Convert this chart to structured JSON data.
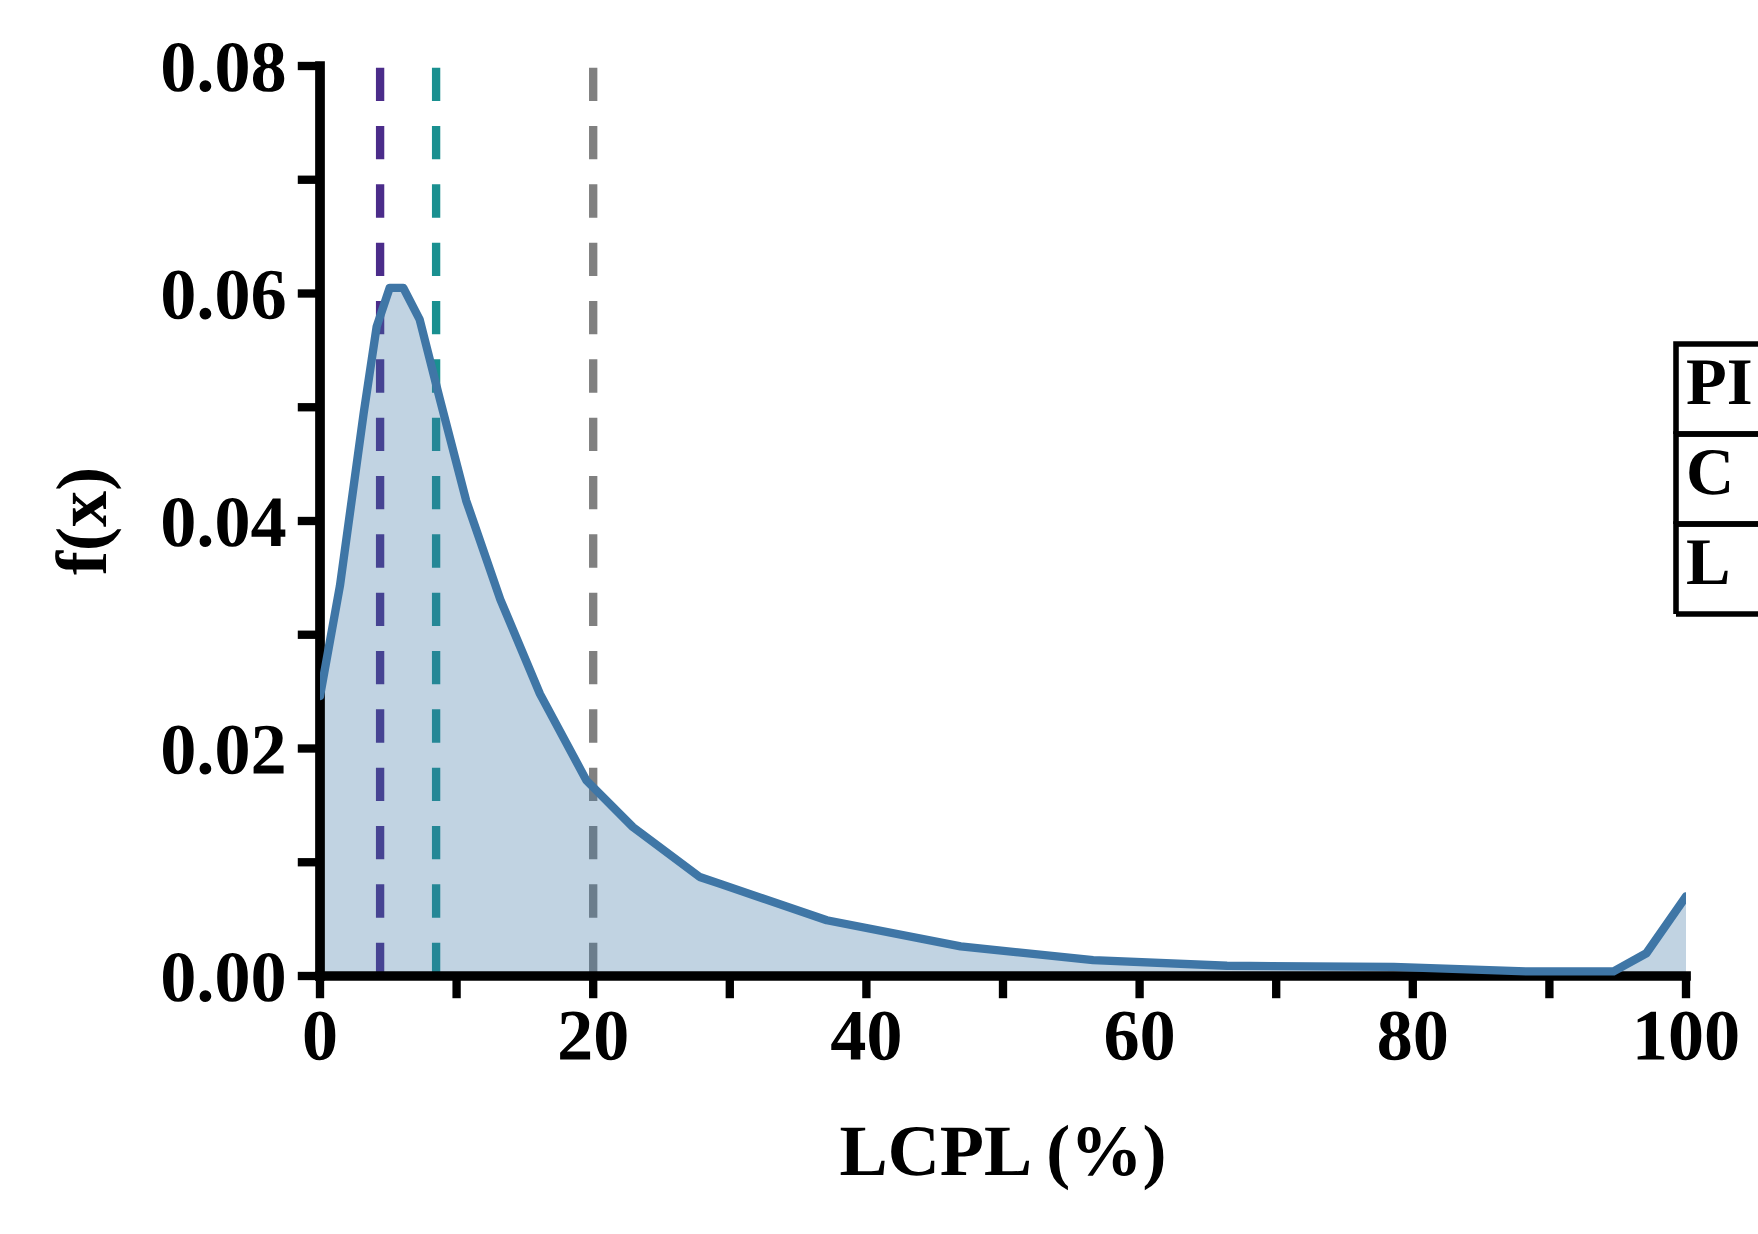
{
  "chart_data": {
    "type": "area",
    "xlabel": "LCPL (%)",
    "ylabel": "f(x)",
    "x": [
      0,
      1.46,
      3.2,
      4.15,
      5.1,
      6.1,
      7.3,
      8.8,
      10.7,
      13.2,
      16.1,
      19.5,
      22.9,
      27.8,
      29.3,
      37.1,
      46.9,
      56.6,
      66.4,
      78.6,
      88.3,
      94.7,
      97.1,
      100
    ],
    "series": [
      {
        "color": "#3f76a6",
        "values": [
          0.0246,
          0.0343,
          0.0495,
          0.0571,
          0.0605,
          0.0605,
          0.0577,
          0.0506,
          0.0418,
          0.0331,
          0.0248,
          0.0172,
          0.0131,
          0.0087,
          0.0081,
          0.0049,
          0.0026,
          0.0014,
          0.0009,
          0.0008,
          0.0004,
          0.0004,
          0.002,
          0.007
        ]
      }
    ],
    "xlim": [
      0,
      100
    ],
    "ylim": [
      0,
      0.08
    ],
    "xticks": [
      0,
      {
        "value": 10,
        "label": null
      },
      20,
      {
        "value": 30,
        "label": null
      },
      40,
      {
        "value": 50,
        "label": null
      },
      60,
      {
        "value": 70,
        "label": null
      },
      80,
      {
        "value": 90,
        "label": null
      },
      100
    ],
    "yticks": [
      {
        "value": 0,
        "label": "0.00"
      },
      {
        "value": 0.01,
        "label": null
      },
      {
        "value": 0.02,
        "label": "0.02"
      },
      {
        "value": 0.03,
        "label": null
      },
      {
        "value": 0.04,
        "label": "0.04"
      },
      {
        "value": 0.05,
        "label": null
      },
      {
        "value": 0.06,
        "label": "0.06"
      },
      {
        "value": 0.07,
        "label": null
      },
      {
        "value": 0.08,
        "label": "0.08"
      }
    ],
    "ref_lines": [
      {
        "axis": "x",
        "value": 4.4,
        "color": "#4b2c8a",
        "line_style": "dashed"
      },
      {
        "axis": "x",
        "value": 8.5,
        "color": "#1a9090",
        "line_style": "dashed"
      },
      {
        "axis": "x",
        "value": 20,
        "color": "#808080",
        "line_style": "dashed"
      }
    ],
    "annotations": [
      "PI",
      "C",
      "L"
    ],
    "grid": false,
    "legend": false
  }
}
